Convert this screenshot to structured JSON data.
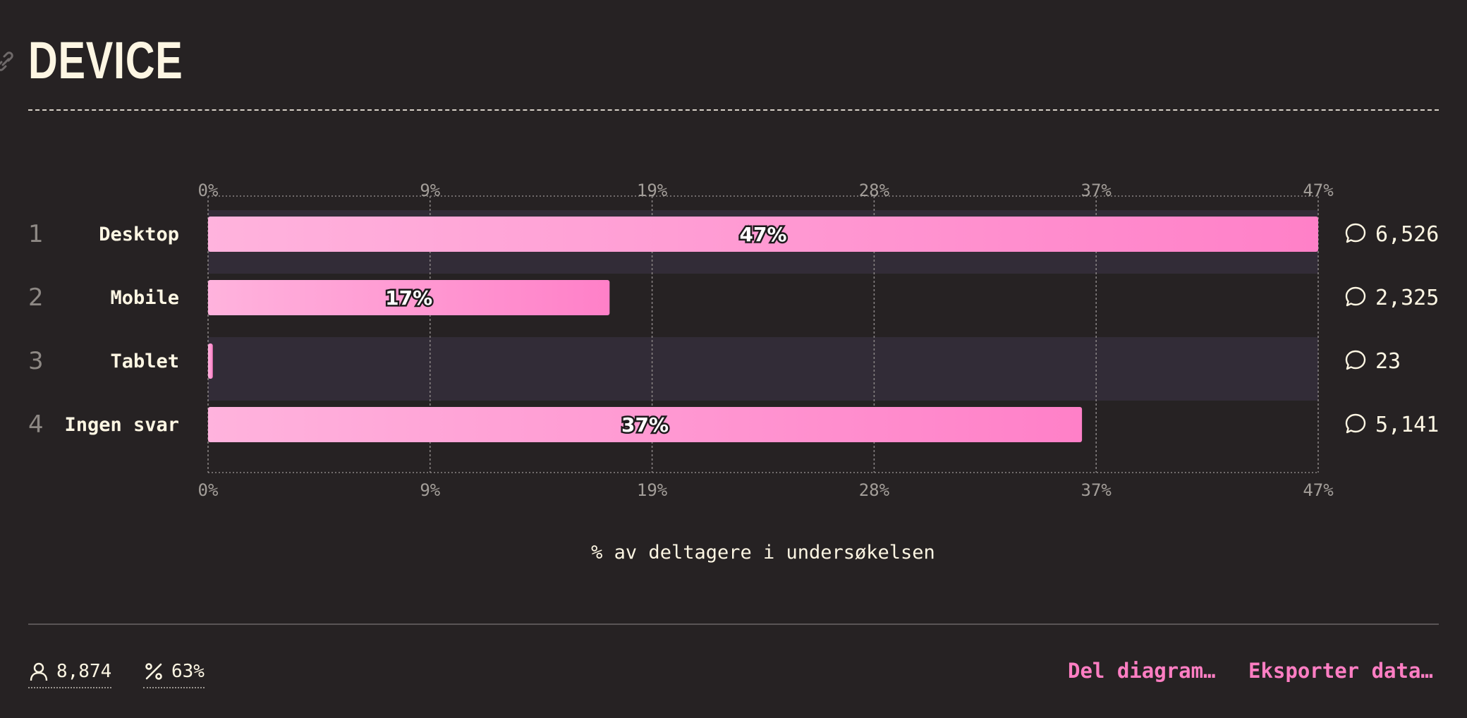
{
  "page": {
    "title": "DEVICE"
  },
  "chart_data": {
    "type": "bar",
    "orientation": "horizontal",
    "title": "DEVICE",
    "xlabel": "% av deltagere i undersøkelsen",
    "ylabel": "",
    "xlim": [
      0,
      47
    ],
    "ticks": [
      "0%",
      "9%",
      "19%",
      "28%",
      "37%",
      "47%"
    ],
    "tick_values": [
      0,
      9.4,
      18.8,
      28.2,
      37.6,
      47
    ],
    "categories": [
      "Desktop",
      "Mobile",
      "Tablet",
      "Ingen svar"
    ],
    "ranks": [
      "1",
      "2",
      "3",
      "4"
    ],
    "values": [
      47,
      17,
      0.2,
      37
    ],
    "value_labels": [
      "47%",
      "17%",
      "",
      "37%"
    ],
    "counts": [
      "6,526",
      "2,325",
      "23",
      "5,141"
    ],
    "grid": true,
    "legend": "none",
    "colors": {
      "bar_start": "#ffb3dd",
      "bar_end": "#ff80c8",
      "row_highlight": "#322c37",
      "grid": "#8a8585",
      "tick_label": "#a39e99"
    }
  },
  "footer": {
    "respondents": "8,874",
    "percent": "63%",
    "share_label": "Del diagram…",
    "export_label": "Eksporter data…",
    "icons": {
      "respondents": "user-icon",
      "percent": "percent-icon",
      "count": "comment-icon",
      "anchor": "link-icon"
    }
  }
}
